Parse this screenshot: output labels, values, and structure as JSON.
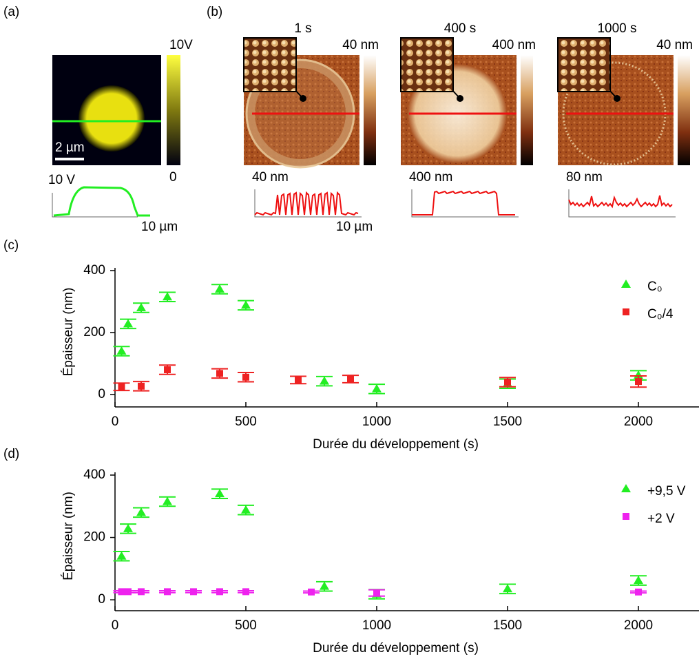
{
  "panel_a": {
    "label": "(a)",
    "colorbar_max": "10V",
    "colorbar_min": "0",
    "scale_bar": "2 µm",
    "profile_y": "10 V",
    "profile_x": "10 µm"
  },
  "panel_b": {
    "label": "(b)",
    "images": [
      {
        "time": "1 s",
        "colorbar_max": "40 nm",
        "profile_y": "40 nm",
        "profile_x": "10 µm"
      },
      {
        "time": "400 s",
        "colorbar_max": "400 nm",
        "profile_y": "400 nm"
      },
      {
        "time": "1000 s",
        "colorbar_max": "40 nm",
        "profile_y": "80 nm"
      }
    ]
  },
  "chart_data": [
    {
      "type": "scatter",
      "label": "(c)",
      "x_label": "Durée du développement (s)",
      "y_label": "Épaisseur (nm)",
      "xlim": [
        0,
        2250
      ],
      "ylim": [
        -40,
        400
      ],
      "xticks": [
        0,
        500,
        1000,
        1500,
        2000
      ],
      "yticks": [
        0,
        200,
        400
      ],
      "legend": "upper right",
      "series": [
        {
          "name": "C₀",
          "color": "#22ee22",
          "marker": "triangle",
          "x": [
            25,
            50,
            100,
            200,
            400,
            500,
            800,
            1000,
            1500,
            2000
          ],
          "values": [
            140,
            228,
            280,
            315,
            340,
            288,
            43,
            18,
            35,
            62
          ],
          "errors": [
            15,
            15,
            15,
            15,
            15,
            15,
            15,
            15,
            15,
            15
          ]
        },
        {
          "name": "C₀/4",
          "color": "#ee2222",
          "marker": "square",
          "x": [
            25,
            100,
            200,
            400,
            500,
            700,
            900,
            1500,
            2000
          ],
          "values": [
            25,
            27,
            80,
            68,
            56,
            47,
            50,
            40,
            42
          ],
          "errors": [
            12,
            15,
            15,
            15,
            15,
            12,
            12,
            15,
            18
          ]
        }
      ]
    },
    {
      "type": "scatter",
      "label": "(d)",
      "x_label": "Durée du développement (s)",
      "y_label": "Épaisseur (nm)",
      "xlim": [
        0,
        2250
      ],
      "ylim": [
        -35,
        400
      ],
      "xticks": [
        0,
        500,
        1000,
        1500,
        2000
      ],
      "yticks": [
        0,
        200,
        400
      ],
      "legend": "upper right",
      "series": [
        {
          "name": "+9,5 V",
          "color": "#22ee22",
          "marker": "triangle",
          "x": [
            25,
            50,
            100,
            200,
            400,
            500,
            800,
            1000,
            1500,
            2000
          ],
          "values": [
            140,
            228,
            280,
            315,
            340,
            288,
            43,
            18,
            35,
            62
          ],
          "errors": [
            15,
            15,
            15,
            15,
            15,
            15,
            15,
            15,
            15,
            15
          ]
        },
        {
          "name": "+2 V",
          "color": "#ee22ee",
          "marker": "square",
          "x": [
            25,
            50,
            100,
            200,
            300,
            400,
            500,
            750,
            1000,
            2000
          ],
          "values": [
            26,
            26,
            26,
            26,
            26,
            26,
            26,
            25,
            22,
            25
          ],
          "errors": [
            3,
            3,
            3,
            3,
            3,
            3,
            3,
            3,
            10,
            3
          ]
        }
      ]
    }
  ]
}
